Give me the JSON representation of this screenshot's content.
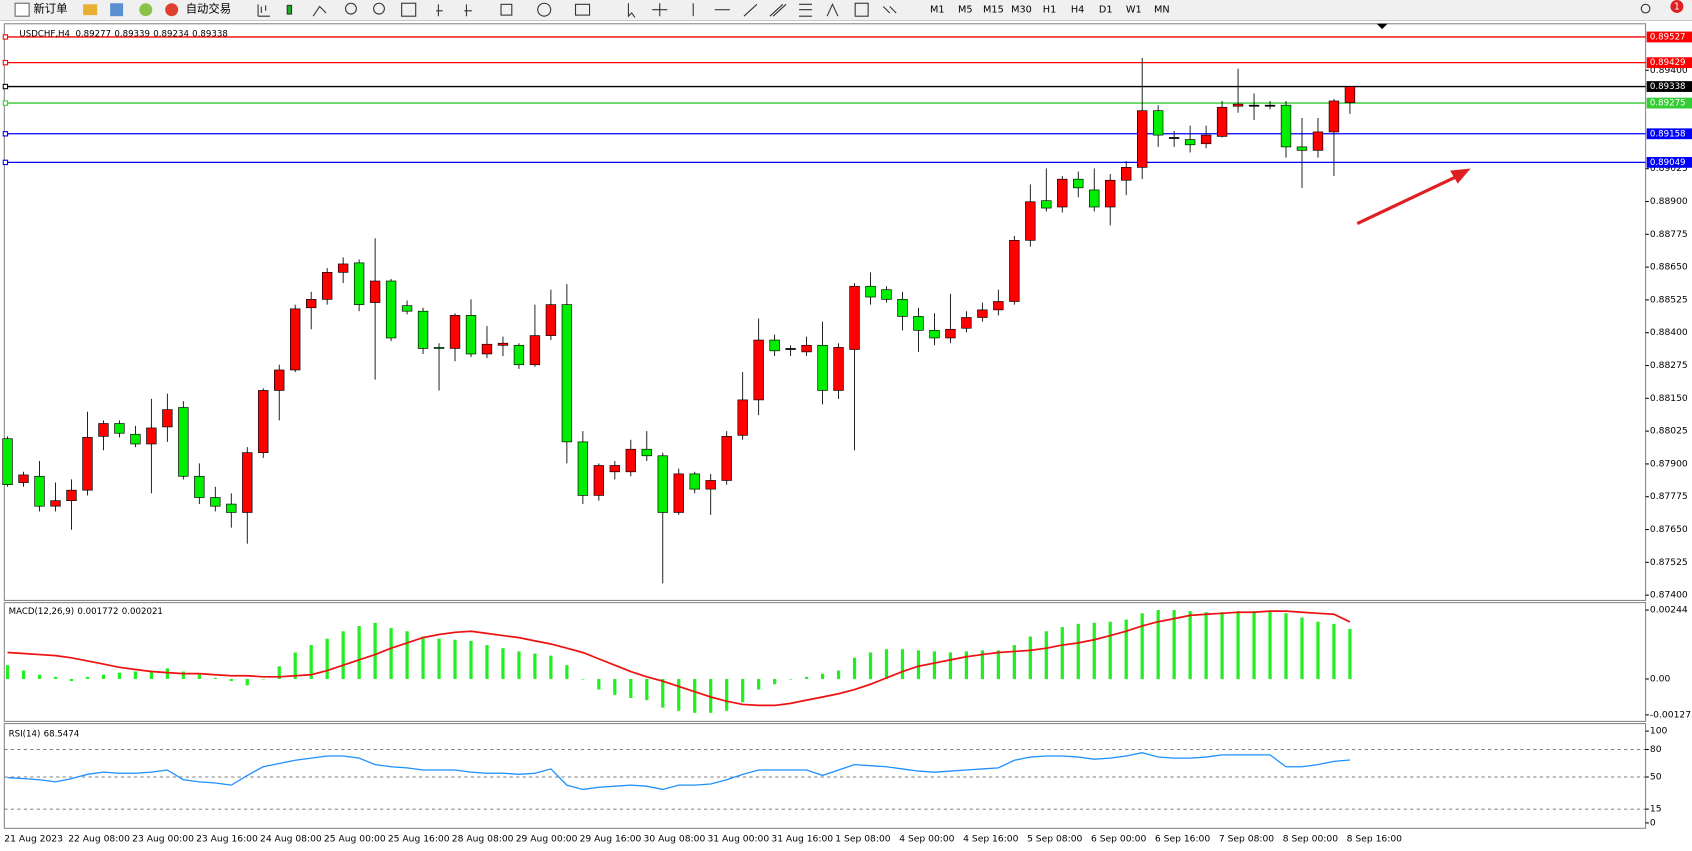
{
  "toolbar": {
    "new_order": "新订单",
    "auto_trading": "自动交易",
    "timeframes": [
      "M1",
      "M5",
      "M15",
      "M30",
      "H1",
      "H4",
      "D1",
      "W1",
      "MN"
    ],
    "notification_count": 1
  },
  "chart_data": [
    {
      "type": "candlestick",
      "title": "USDCHF,H4",
      "up_color": "#ff0000",
      "down_color": "#00ee00",
      "categories": [
        "21 Aug 2023",
        null,
        null,
        null,
        "22 Aug 08:00",
        null,
        null,
        null,
        "23 Aug 00:00",
        null,
        null,
        null,
        "23 Aug 16:00",
        null,
        null,
        null,
        "24 Aug 08:00",
        null,
        null,
        null,
        "25 Aug 00:00",
        null,
        null,
        null,
        "25 Aug 16:00",
        null,
        null,
        null,
        "28 Aug 08:00",
        null,
        null,
        null,
        "29 Aug 00:00",
        null,
        null,
        null,
        "29 Aug 16:00",
        null,
        null,
        null,
        "30 Aug 08:00",
        null,
        null,
        null,
        "31 Aug 00:00",
        null,
        null,
        null,
        "31 Aug 16:00",
        null,
        null,
        null,
        "1 Sep 08:00",
        null,
        null,
        null,
        "4 Sep 00:00",
        null,
        null,
        null,
        "4 Sep 16:00",
        null,
        null,
        null,
        "5 Sep 08:00",
        null,
        null,
        null,
        "6 Sep 00:00",
        null,
        null,
        null,
        "6 Sep 16:00",
        null,
        null,
        null,
        "7 Sep 08:00",
        null,
        null,
        null,
        "8 Sep 00:00",
        null,
        null,
        null,
        "8 Sep 16:00"
      ],
      "open": [
        0.87996,
        0.87829,
        0.87853,
        0.87739,
        0.8776,
        0.878,
        0.88005,
        0.88054,
        0.88013,
        0.87976,
        0.88041,
        0.88115,
        0.87853,
        0.87772,
        0.87747,
        0.87715,
        0.87943,
        0.8818,
        0.88258,
        0.88495,
        0.88527,
        0.8863,
        0.88666,
        0.88515,
        0.88597,
        0.88503,
        0.88482,
        0.88344,
        0.8834,
        0.88466,
        0.88319,
        0.88352,
        0.88352,
        0.88278,
        0.88389,
        0.88507,
        0.87984,
        0.8778,
        0.8787,
        0.8787,
        0.87956,
        0.87931,
        0.87715,
        0.87862,
        0.87804,
        0.87837,
        0.88009,
        0.88144,
        0.88372,
        0.8834,
        0.88327,
        0.88352,
        0.8818,
        0.88336,
        0.88577,
        0.88564,
        0.88527,
        0.88462,
        0.88409,
        0.8838,
        0.88417,
        0.88458,
        0.88487,
        0.88519,
        0.88752,
        0.88903,
        0.88879,
        0.88985,
        0.88944,
        0.88879,
        0.88981,
        0.8903,
        0.89246,
        0.89144,
        0.89136,
        0.8912,
        0.89148,
        0.89263,
        0.89267,
        0.89267,
        0.89267,
        0.89108,
        0.89095,
        0.89165,
        0.89277
      ],
      "high": [
        0.88005,
        0.8787,
        0.87911,
        0.87829,
        0.87841,
        0.88099,
        0.88066,
        0.88066,
        0.88045,
        0.88148,
        0.88168,
        0.88139,
        0.87902,
        0.87813,
        0.87788,
        0.87964,
        0.88188,
        0.88278,
        0.88507,
        0.88556,
        0.88646,
        0.88687,
        0.88679,
        0.8876,
        0.88605,
        0.88523,
        0.88495,
        0.8836,
        0.88474,
        0.88527,
        0.88425,
        0.88385,
        0.8836,
        0.88507,
        0.88564,
        0.88585,
        0.88025,
        0.87902,
        0.87911,
        0.87992,
        0.88025,
        0.87943,
        0.87882,
        0.8787,
        0.87862,
        0.88025,
        0.8825,
        0.88454,
        0.88393,
        0.88352,
        0.88385,
        0.88442,
        0.8836,
        0.88589,
        0.8863,
        0.88577,
        0.88556,
        0.88495,
        0.88474,
        0.88548,
        0.88482,
        0.88515,
        0.88564,
        0.88769,
        0.88965,
        0.89026,
        0.88997,
        0.89014,
        0.89026,
        0.89005,
        0.89054,
        0.89447,
        0.89267,
        0.89169,
        0.89189,
        0.89189,
        0.89283,
        0.89406,
        0.89312,
        0.89283,
        0.89283,
        0.89218,
        0.89218,
        0.89291,
        0.89339
      ],
      "low": [
        0.87813,
        0.87813,
        0.87719,
        0.87719,
        0.87649,
        0.8778,
        0.87952,
        0.88001,
        0.87964,
        0.87788,
        0.87984,
        0.87841,
        0.87747,
        0.87719,
        0.87657,
        0.87596,
        0.87923,
        0.88066,
        0.8825,
        0.88413,
        0.88507,
        0.88589,
        0.88482,
        0.88221,
        0.88368,
        0.8847,
        0.88319,
        0.8818,
        0.88291,
        0.88307,
        0.88303,
        0.88311,
        0.88262,
        0.8827,
        0.88372,
        0.87902,
        0.87747,
        0.8776,
        0.87841,
        0.87853,
        0.87911,
        0.87445,
        0.87706,
        0.87788,
        0.87706,
        0.87821,
        0.87992,
        0.88086,
        0.88311,
        0.88311,
        0.88311,
        0.88127,
        0.88148,
        0.87952,
        0.88507,
        0.88515,
        0.88409,
        0.88327,
        0.88352,
        0.8836,
        0.88401,
        0.88442,
        0.88466,
        0.88507,
        0.88728,
        0.88862,
        0.88858,
        0.88916,
        0.88862,
        0.88809,
        0.88924,
        0.88985,
        0.89108,
        0.89108,
        0.89087,
        0.89103,
        0.89144,
        0.89238,
        0.8921,
        0.89251,
        0.89067,
        0.88952,
        0.89067,
        0.88997,
        0.89234
      ],
      "close": [
        0.87821,
        0.87858,
        0.87739,
        0.8776,
        0.878,
        0.88001,
        0.88054,
        0.88017,
        0.87976,
        0.88037,
        0.88107,
        0.87853,
        0.87772,
        0.87739,
        0.87715,
        0.87943,
        0.8818,
        0.88258,
        0.88491,
        0.88527,
        0.8863,
        0.88662,
        0.88507,
        0.88597,
        0.8838,
        0.88482,
        0.8834,
        0.88342,
        0.88466,
        0.88319,
        0.88356,
        0.8836,
        0.88278,
        0.88389,
        0.88507,
        0.87984,
        0.8778,
        0.87894,
        0.87894,
        0.87956,
        0.87931,
        0.87715,
        0.87862,
        0.87804,
        0.87837,
        0.88005,
        0.88144,
        0.88372,
        0.88331,
        0.8834,
        0.88352,
        0.8818,
        0.88344,
        0.88577,
        0.88536,
        0.88527,
        0.88462,
        0.88409,
        0.8838,
        0.88413,
        0.88458,
        0.88487,
        0.88519,
        0.88752,
        0.88899,
        0.88875,
        0.88985,
        0.88952,
        0.88879,
        0.88981,
        0.8903,
        0.89246,
        0.89153,
        0.89144,
        0.89116,
        0.89153,
        0.89259,
        0.89271,
        0.89267,
        0.89267,
        0.89108,
        0.89095,
        0.89165,
        0.89283,
        0.89338
      ],
      "levels": [
        {
          "value": 0.89527,
          "color": "#ff0000"
        },
        {
          "value": 0.89429,
          "color": "#ff0000"
        },
        {
          "value": 0.89338,
          "color": "#000000"
        },
        {
          "value": 0.89275,
          "color": "#33cc33"
        },
        {
          "value": 0.89158,
          "color": "#0000ff"
        },
        {
          "value": 0.89049,
          "color": "#0000ff"
        }
      ],
      "ylim": [
        0.87388,
        0.89569
      ],
      "yticks": [
        {
          "value": 0.894,
          "label": "0.89400"
        },
        0.89025,
        {
          "value": 0.889,
          "label": "0.88900"
        },
        0.88775,
        {
          "value": 0.8865,
          "label": "0.88650"
        },
        0.88525,
        {
          "value": 0.884,
          "label": "0.88400"
        },
        0.88275,
        {
          "value": 0.8815,
          "label": "0.88150"
        },
        0.88025,
        {
          "value": 0.879,
          "label": "0.87900"
        },
        0.87775,
        {
          "value": 0.8765,
          "label": "0.87650"
        },
        0.87525,
        {
          "value": 0.874,
          "label": "0.87400"
        }
      ]
    },
    {
      "type": "macd",
      "title": "MACD(12,26,9)",
      "histogram": {
        "color": "#22ee22",
        "values": [
          0.000488,
          0.0003,
          0.00015,
          7.5e-05,
          -7.5e-05,
          7.5e-05,
          0.00015,
          0.000225,
          0.000263,
          0.0003,
          0.000375,
          0.000263,
          0.00015,
          3.8e-05,
          -7.5e-05,
          -0.000225,
          0,
          0.00045,
          0.000938,
          0.001201,
          0.001427,
          0.001689,
          0.001877,
          0.00199,
          0.001802,
          0.001689,
          0.001502,
          0.001427,
          0.001389,
          0.001351,
          0.001201,
          0.001089,
          0.000976,
          0.000901,
          0.000826,
          0.000488,
          0,
          -0.000375,
          -0.000563,
          -0.000676,
          -0.000751,
          -0.001014,
          -0.001126,
          -0.001201,
          -0.001201,
          -0.001126,
          -0.000826,
          -0.000375,
          -0.000188,
          0,
          7.5e-05,
          0.000188,
          0.0003,
          0.000751,
          0.000938,
          0.001051,
          0.001051,
          0.001014,
          0.000976,
          0.000938,
          0.000976,
          0.001014,
          0.001014,
          0.001201,
          0.001502,
          0.001689,
          0.001839,
          0.001952,
          0.00199,
          0.002027,
          0.002102,
          0.002327,
          0.00244,
          0.00244,
          0.002403,
          0.002365,
          0.002365,
          0.002403,
          0.002403,
          0.002403,
          0.002327,
          0.002177,
          0.002027,
          0.001952,
          0.001772
        ]
      },
      "signal": {
        "color": "#ee1111",
        "values": [
          0.000938,
          0.000901,
          0.000863,
          0.000826,
          0.000751,
          0.000638,
          0.000526,
          0.000413,
          0.000338,
          0.000263,
          0.000225,
          0.000188,
          0.000188,
          0.00015,
          0.000113,
          0.000113,
          7.5e-05,
          7.5e-05,
          0.000113,
          0.00015,
          0.0003,
          0.000488,
          0.000676,
          0.000863,
          0.001089,
          0.001276,
          0.001464,
          0.001577,
          0.001652,
          0.001689,
          0.001614,
          0.001539,
          0.001464,
          0.001351,
          0.001239,
          0.001089,
          0.000938,
          0.000713,
          0.000488,
          0.000263,
          7.5e-05,
          -7.5e-05,
          -0.000263,
          -0.00045,
          -0.000638,
          -0.000788,
          -0.000901,
          -0.000938,
          -0.000938,
          -0.000863,
          -0.000751,
          -0.000638,
          -0.000526,
          -0.000375,
          -0.000188,
          3.8e-05,
          0.000263,
          0.00045,
          0.000563,
          0.000676,
          0.000788,
          0.000863,
          0.000938,
          0.000976,
          0.001014,
          0.001089,
          0.001201,
          0.001276,
          0.001389,
          0.001539,
          0.001689,
          0.001877,
          0.002027,
          0.00214,
          0.002252,
          0.00229,
          0.002327,
          0.002365,
          0.002365,
          0.002403,
          0.002403,
          0.002365,
          0.002327,
          0.00229,
          0.002021
        ]
      },
      "ylim": [
        -0.001427,
        0.002628
      ],
      "yticks": [
        0.00244,
        {
          "value": 0,
          "label": "0.00"
        },
        -0.001273
      ]
    },
    {
      "type": "line",
      "title": "RSI(14)",
      "color": "#1e90ff",
      "values": [
        49.4,
        48.2,
        47.1,
        44.7,
        48.2,
        52.9,
        55.3,
        54.1,
        54.1,
        55.3,
        57.6,
        47.1,
        44.7,
        43.5,
        41.2,
        51.8,
        61.2,
        64.7,
        68.2,
        70.6,
        72.9,
        72.9,
        70.6,
        63.5,
        61.2,
        60,
        57.6,
        57.6,
        57.6,
        55.3,
        54.1,
        54.1,
        52.9,
        54.1,
        58.8,
        41.2,
        36.5,
        38.8,
        40,
        41.2,
        40,
        36.5,
        41.2,
        41.2,
        42.4,
        47.1,
        52.9,
        57.6,
        57.6,
        57.6,
        57.6,
        51.8,
        57.6,
        63.5,
        62.4,
        61.2,
        58.8,
        56.5,
        55.3,
        56.5,
        57.6,
        58.8,
        60,
        68.2,
        71.8,
        72.9,
        72.9,
        71.8,
        69.4,
        70.6,
        72.9,
        76.5,
        71.8,
        70.6,
        70.6,
        71.8,
        74.1,
        74.1,
        74.1,
        74.1,
        61.2,
        61.2,
        63.5,
        67.1,
        68.5474
      ],
      "ylim": [
        0,
        100
      ],
      "yticks": [
        100,
        80,
        50,
        15,
        0
      ],
      "grid": "dashed"
    }
  ]
}
